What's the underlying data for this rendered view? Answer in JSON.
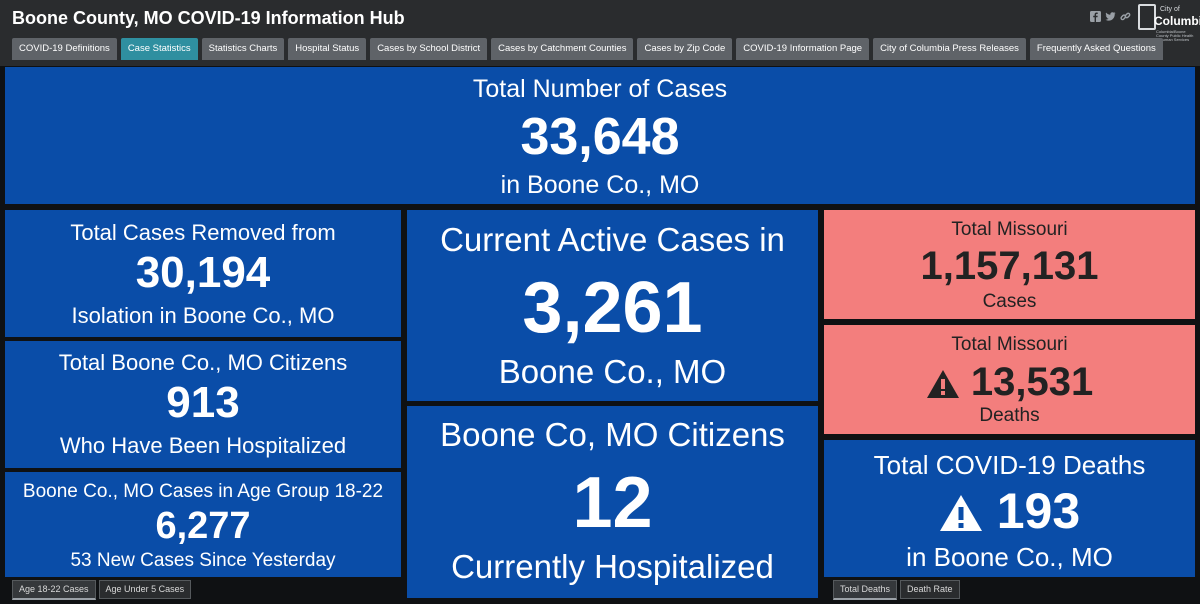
{
  "header": {
    "title": "Boone County, MO COVID-19 Information Hub",
    "social_icons": [
      "facebook-icon",
      "twitter-icon",
      "link-icon"
    ],
    "logo": {
      "line1": "City of",
      "line2": "Columbia",
      "line3": "Columbia/Boone County Public Health & Human Services"
    }
  },
  "tabs": [
    {
      "label": "COVID-19 Definitions",
      "active": false
    },
    {
      "label": "Case Statistics",
      "active": true
    },
    {
      "label": "Statistics Charts",
      "active": false
    },
    {
      "label": "Hospital Status",
      "active": false
    },
    {
      "label": "Cases by School District",
      "active": false
    },
    {
      "label": "Cases by Catchment Counties",
      "active": false
    },
    {
      "label": "Cases by Zip Code",
      "active": false
    },
    {
      "label": "COVID-19 Information Page",
      "active": false
    },
    {
      "label": "City of Columbia Press Releases",
      "active": false
    },
    {
      "label": "Frequently Asked Questions",
      "active": false
    }
  ],
  "total_cases": {
    "title": "Total Number of Cases",
    "value": "33,648",
    "subtitle": "in Boone Co., MO"
  },
  "removed": {
    "title": "Total Cases Removed from",
    "value": "30,194",
    "subtitle": "Isolation in Boone Co., MO"
  },
  "hospitalized_total": {
    "title": "Total Boone Co., MO Citizens",
    "value": "913",
    "subtitle": "Who Have Been Hospitalized"
  },
  "age_group": {
    "title": "Boone Co., MO Cases in Age Group 18-22",
    "value": "6,277",
    "subtitle": "53 New Cases Since Yesterday"
  },
  "active": {
    "title": "Current Active Cases in",
    "value": "3,261",
    "subtitle": "Boone Co., MO"
  },
  "current_hosp": {
    "title": "Boone Co, MO Citizens",
    "value": "12",
    "subtitle": "Currently Hospitalized"
  },
  "mo_cases": {
    "title": "Total Missouri",
    "value": "1,157,131",
    "subtitle": "Cases"
  },
  "mo_deaths": {
    "title": "Total Missouri",
    "value": "13,531",
    "subtitle": "Deaths",
    "icon": "warning-icon"
  },
  "boone_deaths": {
    "title": "Total COVID-19 Deaths",
    "value": "193",
    "subtitle": "in Boone Co., MO",
    "icon": "warning-icon"
  },
  "bottom_tabs_left": [
    {
      "label": "Age 18-22 Cases",
      "active": true
    },
    {
      "label": "Age Under 5 Cases",
      "active": false
    }
  ],
  "bottom_tabs_right": [
    {
      "label": "Total Deaths",
      "active": true
    },
    {
      "label": "Death Rate",
      "active": false
    }
  ],
  "colors": {
    "panel_blue": "#0a4da8",
    "panel_pink": "#f37e7d",
    "active_tab": "#2f8fa0",
    "header": "#2a2c2e"
  }
}
